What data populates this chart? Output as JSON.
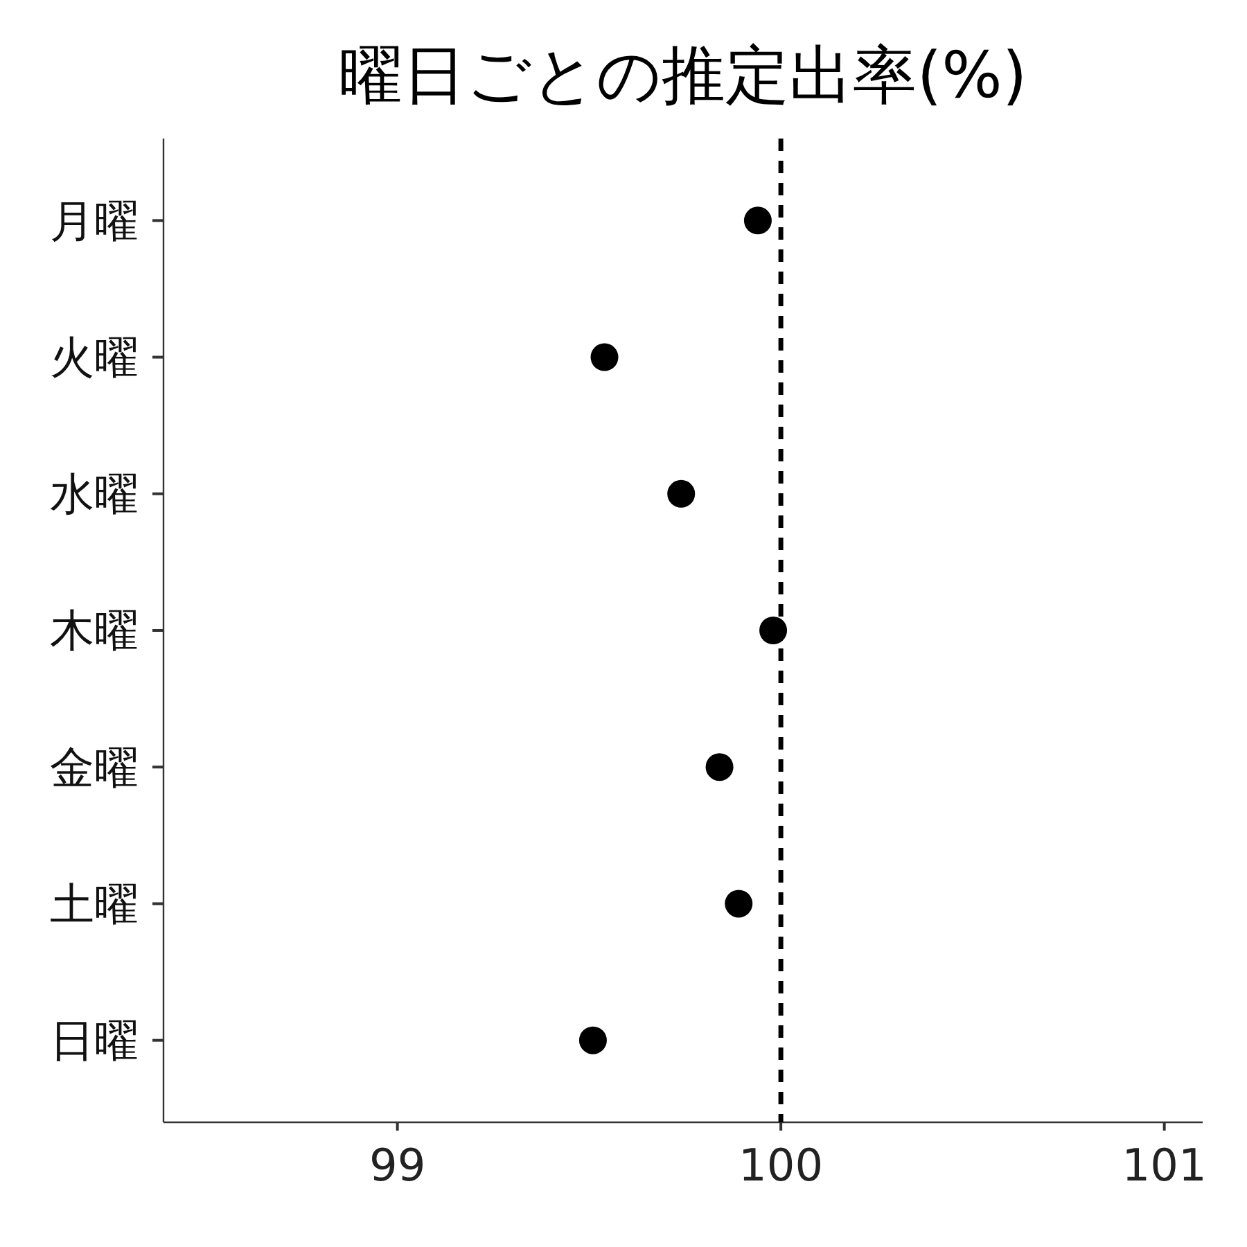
{
  "chart_data": {
    "type": "scatter",
    "orientation": "horizontal",
    "title": "曜日ごとの推定出率(%)",
    "categories": [
      "月曜",
      "火曜",
      "水曜",
      "木曜",
      "金曜",
      "土曜",
      "日曜"
    ],
    "values": [
      99.94,
      99.54,
      99.74,
      99.98,
      99.84,
      99.89,
      99.51
    ],
    "color": "#000000",
    "marker": "circle",
    "grid": false,
    "xlim": [
      98.39,
      101.1
    ],
    "xticks": [
      99,
      100,
      101
    ],
    "ref_lines": [
      {
        "axis": "x",
        "value": 100,
        "color": "#000000",
        "line_style": "dashed"
      }
    ]
  }
}
